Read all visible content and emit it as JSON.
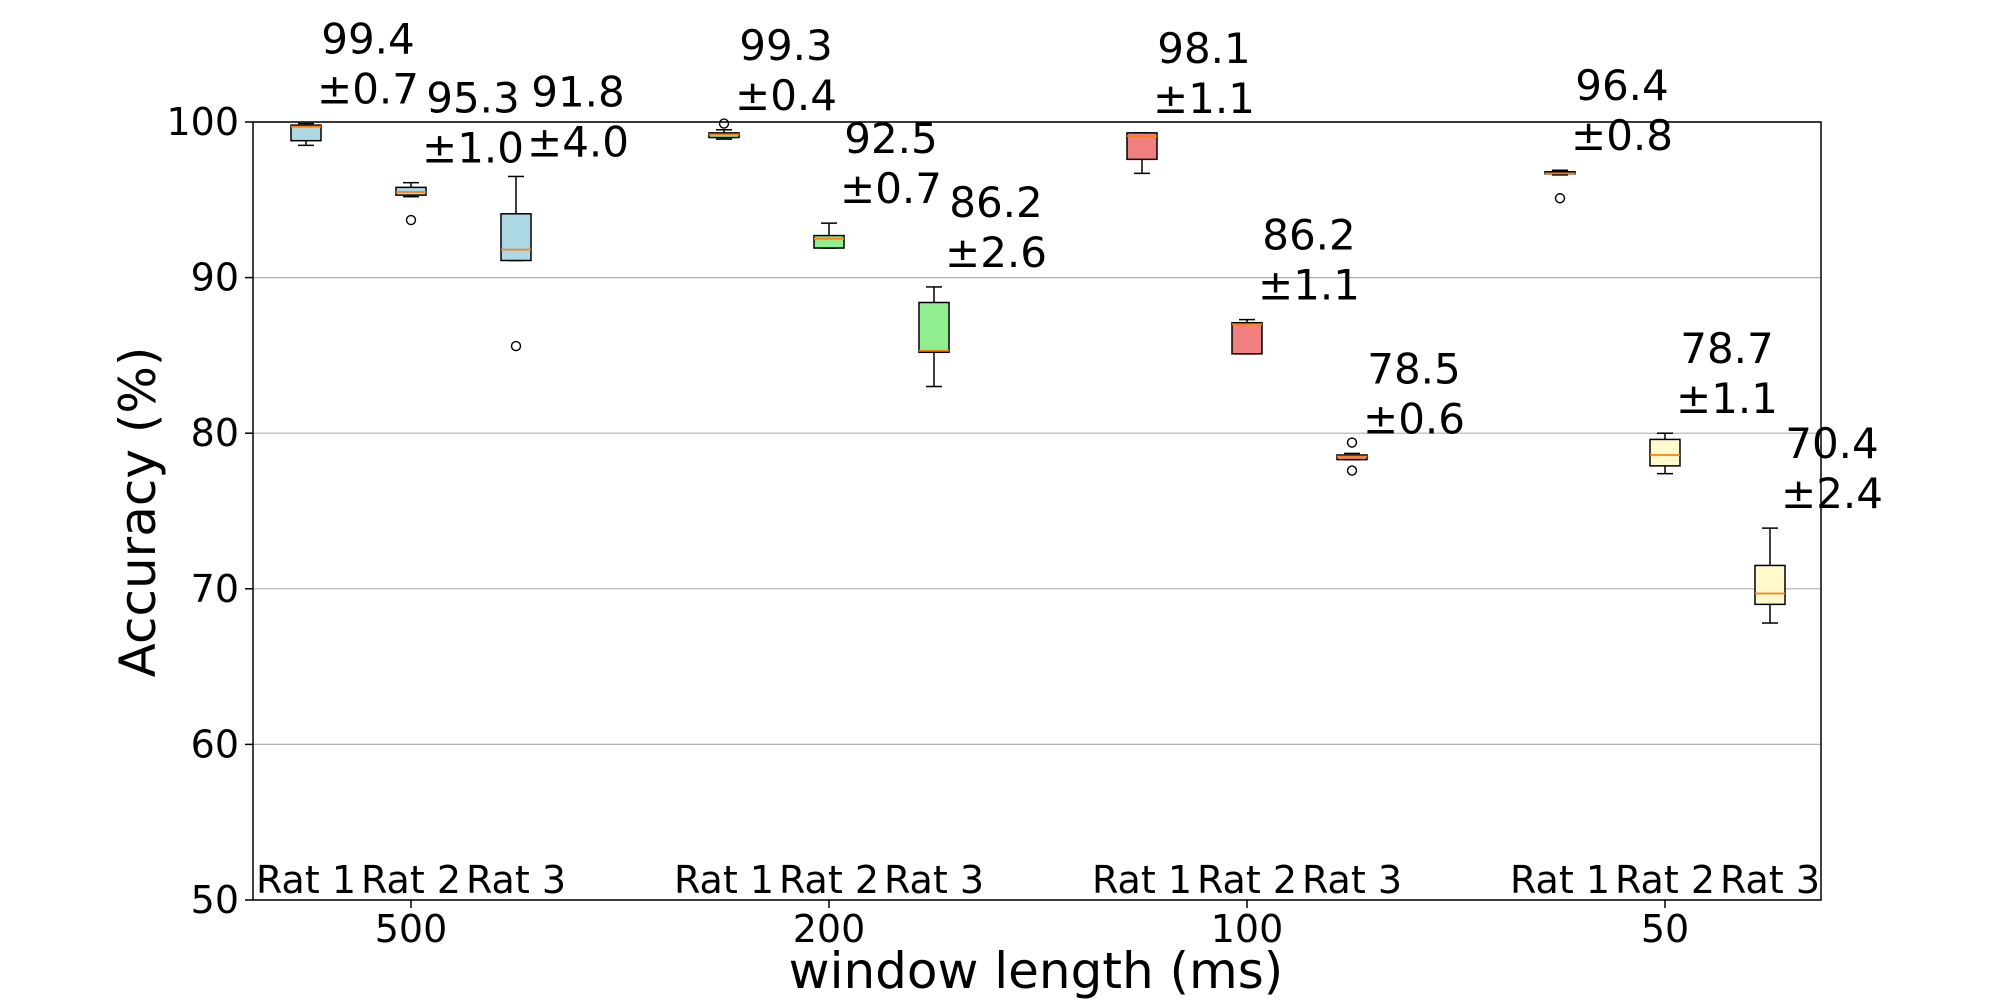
{
  "chart_data": {
    "type": "box",
    "title": "",
    "xlabel": "window length (ms)",
    "ylabel": "Accuracy (%)",
    "ylim": [
      50,
      100
    ],
    "yticks": [
      50,
      60,
      70,
      80,
      90,
      100
    ],
    "grid": "horizontal",
    "categories": [
      "500",
      "200",
      "100",
      "50"
    ],
    "category_colors": [
      "#add8e6",
      "#90ee90",
      "#f08080",
      "#fffacd"
    ],
    "median_color": "#ff7f0e",
    "series_labels": [
      "Rat 1",
      "Rat 2",
      "Rat 3"
    ],
    "groups": [
      {
        "window": "500",
        "boxes": [
          {
            "rat": "Rat 1",
            "whislo": 98.5,
            "q1": 98.8,
            "med": 99.7,
            "q3": 99.8,
            "whishi": 99.9,
            "fliers": [],
            "mean": "99.4",
            "std": "±0.7"
          },
          {
            "rat": "Rat 2",
            "whislo": 95.2,
            "q1": 95.3,
            "med": 95.5,
            "q3": 95.8,
            "whishi": 96.1,
            "fliers": [
              93.7
            ],
            "mean": "95.3",
            "std": "±1.0"
          },
          {
            "rat": "Rat 3",
            "whislo": 91.1,
            "q1": 91.1,
            "med": 91.8,
            "q3": 94.1,
            "whishi": 96.5,
            "fliers": [
              85.6
            ],
            "mean": "91.8",
            "std": "±4.0"
          }
        ]
      },
      {
        "window": "200",
        "boxes": [
          {
            "rat": "Rat 1",
            "whislo": 98.9,
            "q1": 99.0,
            "med": 99.2,
            "q3": 99.3,
            "whishi": 99.5,
            "fliers": [
              99.9
            ],
            "mean": "99.3",
            "std": "±0.4"
          },
          {
            "rat": "Rat 2",
            "whislo": 91.9,
            "q1": 91.9,
            "med": 92.5,
            "q3": 92.7,
            "whishi": 93.5,
            "fliers": [],
            "mean": "92.5",
            "std": "±0.7"
          },
          {
            "rat": "Rat 3",
            "whislo": 83.0,
            "q1": 85.2,
            "med": 85.3,
            "q3": 88.4,
            "whishi": 89.4,
            "fliers": [],
            "mean": "86.2",
            "std": "±2.6"
          }
        ]
      },
      {
        "window": "100",
        "boxes": [
          {
            "rat": "Rat 1",
            "whislo": 96.7,
            "q1": 97.6,
            "med": 99.1,
            "q3": 99.3,
            "whishi": 99.3,
            "fliers": [],
            "mean": "98.1",
            "std": "±1.1"
          },
          {
            "rat": "Rat 2",
            "whislo": 85.1,
            "q1": 85.1,
            "med": 87.0,
            "q3": 87.1,
            "whishi": 87.3,
            "fliers": [],
            "mean": "86.2",
            "std": "±1.1"
          },
          {
            "rat": "Rat 3",
            "whislo": 78.3,
            "q1": 78.3,
            "med": 78.5,
            "q3": 78.6,
            "whishi": 78.7,
            "fliers": [
              79.4,
              77.6
            ],
            "mean": "78.5",
            "std": "±0.6"
          }
        ]
      },
      {
        "window": "50",
        "boxes": [
          {
            "rat": "Rat 1",
            "whislo": 96.6,
            "q1": 96.7,
            "med": 96.7,
            "q3": 96.8,
            "whishi": 96.9,
            "fliers": [
              95.1
            ],
            "mean": "96.4",
            "std": "±0.8"
          },
          {
            "rat": "Rat 2",
            "whislo": 77.4,
            "q1": 77.9,
            "med": 78.6,
            "q3": 79.6,
            "whishi": 80.0,
            "fliers": [],
            "mean": "78.7",
            "std": "±1.1"
          },
          {
            "rat": "Rat 3",
            "whislo": 67.8,
            "q1": 69.0,
            "med": 69.7,
            "q3": 71.5,
            "whishi": 73.9,
            "fliers": [],
            "mean": "70.4",
            "std": "±2.4"
          }
        ]
      }
    ]
  }
}
